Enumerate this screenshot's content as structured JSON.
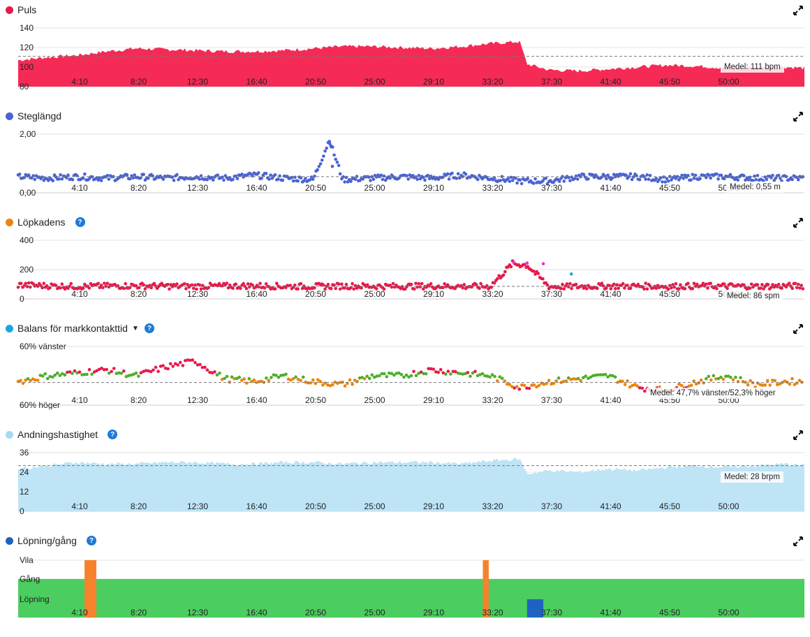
{
  "x_ticks": [
    "4:10",
    "8:20",
    "12:30",
    "16:40",
    "20:50",
    "25:00",
    "29:10",
    "33:20",
    "37:30",
    "41:40",
    "45:50",
    "50:00"
  ],
  "panels": {
    "puls": {
      "title": "Puls",
      "color": "#e8194a",
      "y_ticks": [
        "140",
        "120",
        "100",
        "80"
      ],
      "medel": "Medel: 111 bpm"
    },
    "steglangd": {
      "title": "Steglängd",
      "color": "#4a63d4",
      "y_ticks": [
        "2,00",
        "0,00"
      ],
      "medel": "Medel: 0,55 m"
    },
    "lopkadens": {
      "title": "Löpkadens",
      "color": "#e9850d",
      "y_ticks": [
        "400",
        "200",
        "0"
      ],
      "medel": "Medel: 86 spm",
      "help": "?"
    },
    "balans": {
      "title": "Balans för markkontakttid",
      "color": "#1aa5e0",
      "y_ticks": [
        "60% vänster",
        "60% höger"
      ],
      "medel": "Medel: 47,7% vänster/52,3% höger",
      "help": "?",
      "caret": "▼"
    },
    "andning": {
      "title": "Andningshastighet",
      "color": "#a9d9f2",
      "y_ticks": [
        "36",
        "24",
        "12",
        "0"
      ],
      "medel": "Medel: 28 brpm",
      "help": "?"
    },
    "lopning": {
      "title": "Löpning/gång",
      "color": "#1f63c2",
      "y_ticks": [
        "Vila",
        "Gång",
        "Löpning"
      ],
      "help": "?"
    }
  },
  "chart_data": [
    {
      "type": "area",
      "title": "Puls",
      "ylabel": "bpm",
      "ylim": [
        80,
        140
      ],
      "mean": 111,
      "x_minutes": [
        0,
        2,
        4,
        6,
        8,
        10,
        12,
        14,
        16,
        18,
        20,
        22,
        24,
        26,
        28,
        30,
        32,
        34,
        34.5,
        36,
        38,
        40,
        42,
        44,
        46,
        48,
        50,
        52,
        53.3
      ],
      "values": [
        107,
        110,
        112,
        116,
        119,
        118,
        117,
        116,
        116,
        117,
        119,
        121,
        121,
        120,
        119,
        121,
        124,
        126,
        103,
        97,
        96,
        98,
        100,
        102,
        101,
        99,
        100,
        100,
        99
      ]
    },
    {
      "type": "scatter",
      "title": "Steglängd",
      "ylabel": "m",
      "ylim": [
        0,
        2
      ],
      "mean": 0.55,
      "x_minutes": [
        0,
        2,
        4,
        6,
        8,
        10,
        12,
        14,
        16,
        18,
        20,
        21.1,
        22,
        24,
        26,
        28,
        30,
        32,
        34,
        36,
        38,
        40,
        42,
        44,
        46,
        48,
        50,
        52
      ],
      "values": [
        0.55,
        0.5,
        0.55,
        0.5,
        0.55,
        0.5,
        0.55,
        0.5,
        0.6,
        0.5,
        0.45,
        1.8,
        0.45,
        0.5,
        0.55,
        0.5,
        0.6,
        0.5,
        0.4,
        0.4,
        0.55,
        0.55,
        0.55,
        0.45,
        0.55,
        0.55,
        0.5,
        0.5
      ]
    },
    {
      "type": "scatter",
      "title": "Löpkadens",
      "ylabel": "spm",
      "ylim": [
        0,
        400
      ],
      "mean": 86,
      "x_minutes": [
        0,
        2,
        4,
        6,
        8,
        10,
        12,
        14,
        16,
        18,
        20,
        22,
        24,
        26,
        28,
        30,
        32,
        33.5,
        34.5,
        36,
        38,
        40,
        42,
        44,
        46,
        48,
        50,
        52
      ],
      "values": [
        95,
        90,
        85,
        88,
        90,
        87,
        86,
        88,
        90,
        86,
        85,
        88,
        87,
        86,
        88,
        86,
        85,
        240,
        230,
        84,
        85,
        88,
        87,
        86,
        88,
        87,
        86,
        88
      ]
    },
    {
      "type": "scatter",
      "title": "Balans för markkontakttid",
      "ylabel": "% vänster",
      "ylim": [
        40,
        60
      ],
      "mean": 47.7,
      "x_minutes": [
        0,
        2,
        4,
        6,
        8,
        10,
        12,
        14,
        16,
        18,
        20,
        22,
        24,
        26,
        28,
        30,
        32,
        34,
        36,
        38,
        40,
        42,
        44,
        46,
        48,
        50,
        52
      ],
      "values": [
        48,
        50,
        51,
        52,
        50,
        53,
        55,
        49,
        48,
        50,
        48,
        47,
        50,
        50,
        52,
        51,
        50,
        46,
        48,
        49,
        50,
        46,
        45,
        48,
        50,
        47,
        48
      ]
    },
    {
      "type": "area",
      "title": "Andningshastighet",
      "ylabel": "brpm",
      "ylim": [
        0,
        36
      ],
      "mean": 28,
      "x_minutes": [
        0,
        2,
        4,
        6,
        8,
        10,
        12,
        14,
        16,
        18,
        20,
        22,
        24,
        26,
        28,
        30,
        32,
        34,
        34.5,
        36,
        38,
        40,
        42,
        44,
        46,
        48,
        50,
        52,
        53.3
      ],
      "values": [
        26,
        28,
        30,
        29,
        29,
        30,
        30,
        29,
        29,
        30,
        30,
        29,
        30,
        30,
        30,
        29,
        31,
        32,
        23,
        25,
        24,
        26,
        25,
        27,
        28,
        27,
        28,
        29,
        28
      ]
    },
    {
      "type": "area",
      "title": "Löpning/gång",
      "categories": [
        "Vila",
        "Gång",
        "Löpning"
      ],
      "segments": [
        {
          "state": "Löpning",
          "from": 0,
          "to": 53.3
        },
        {
          "state": "Vila",
          "from": 4.5,
          "to": 5.3
        },
        {
          "state": "Vila",
          "from": 31.5,
          "to": 31.9
        },
        {
          "state": "Löpning",
          "from": 34.5,
          "to": 35.6
        }
      ]
    }
  ]
}
